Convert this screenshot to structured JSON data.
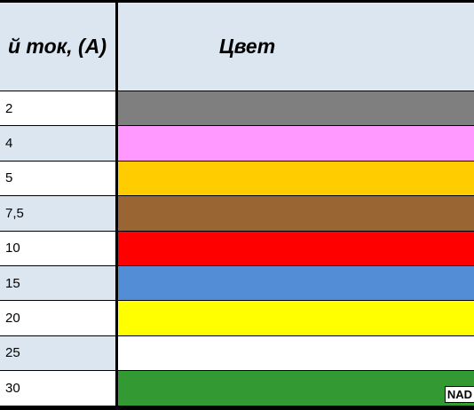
{
  "table": {
    "header": [
      "й ток, (А)",
      "Цвет"
    ],
    "rows": [
      {
        "value": "2",
        "color": "#7f7f7f"
      },
      {
        "value": "4",
        "color": "#ff99ff"
      },
      {
        "value": "5",
        "color": "#ffcc00"
      },
      {
        "value": "7,5",
        "color": "#996633"
      },
      {
        "value": "10",
        "color": "#ff0000"
      },
      {
        "value": "15",
        "color": "#538dd5"
      },
      {
        "value": "20",
        "color": "#ffff00"
      },
      {
        "value": "25",
        "color": "#ffffff"
      },
      {
        "value": "30",
        "color": "#339933"
      }
    ],
    "watermark": "NAD"
  }
}
